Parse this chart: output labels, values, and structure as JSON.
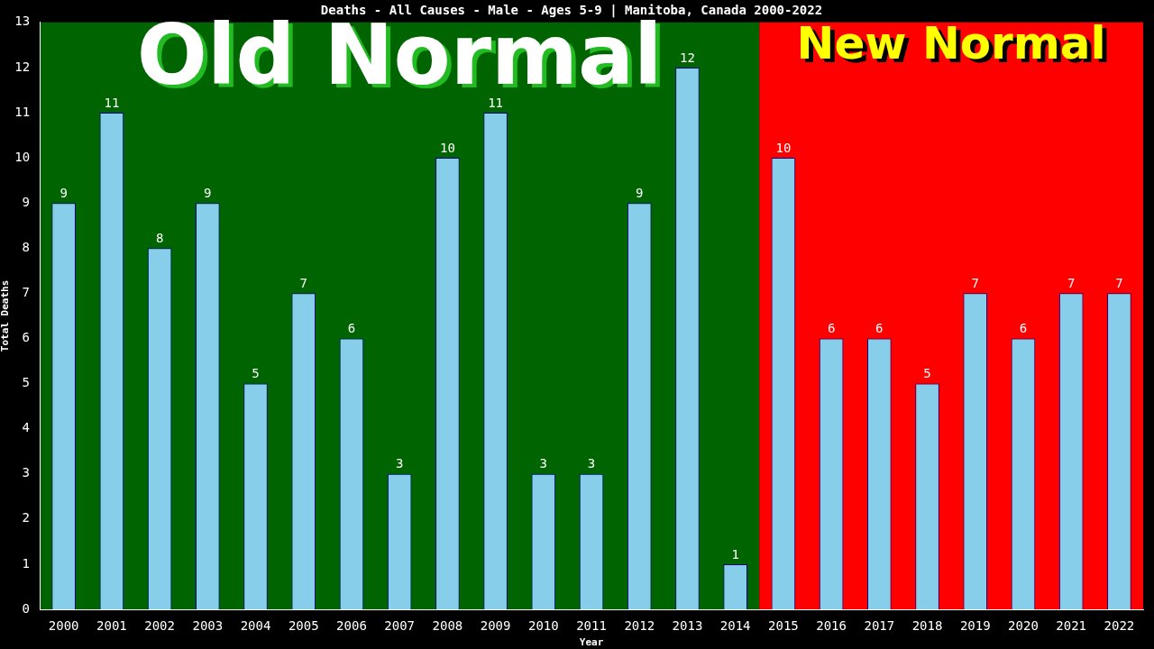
{
  "chart_data": {
    "type": "bar",
    "title": "Deaths - All Causes - Male - Ages 5-9 | Manitoba, Canada 2000-2022",
    "xlabel": "Year",
    "ylabel": "Total Deaths",
    "categories": [
      "2000",
      "2001",
      "2002",
      "2003",
      "2004",
      "2005",
      "2006",
      "2007",
      "2008",
      "2009",
      "2010",
      "2011",
      "2012",
      "2013",
      "2014",
      "2015",
      "2016",
      "2017",
      "2018",
      "2019",
      "2020",
      "2021",
      "2022"
    ],
    "values": [
      9,
      11,
      8,
      9,
      5,
      7,
      6,
      3,
      10,
      11,
      3,
      3,
      9,
      12,
      1,
      10,
      6,
      6,
      5,
      7,
      6,
      7,
      7
    ],
    "color": "#87ceeb",
    "ylim": [
      0,
      13
    ],
    "yticks": [
      0,
      1,
      2,
      3,
      4,
      5,
      6,
      7,
      8,
      9,
      10,
      11,
      12,
      13
    ],
    "grid": false,
    "legend": false,
    "data_labels": true,
    "bands": [
      {
        "axis": "x",
        "from": "2000",
        "to": "2014",
        "label": "Old Normal",
        "color": "#006400"
      },
      {
        "axis": "x",
        "from": "2015",
        "to": "2022",
        "label": "New Normal",
        "color": "#ff0000"
      }
    ]
  }
}
